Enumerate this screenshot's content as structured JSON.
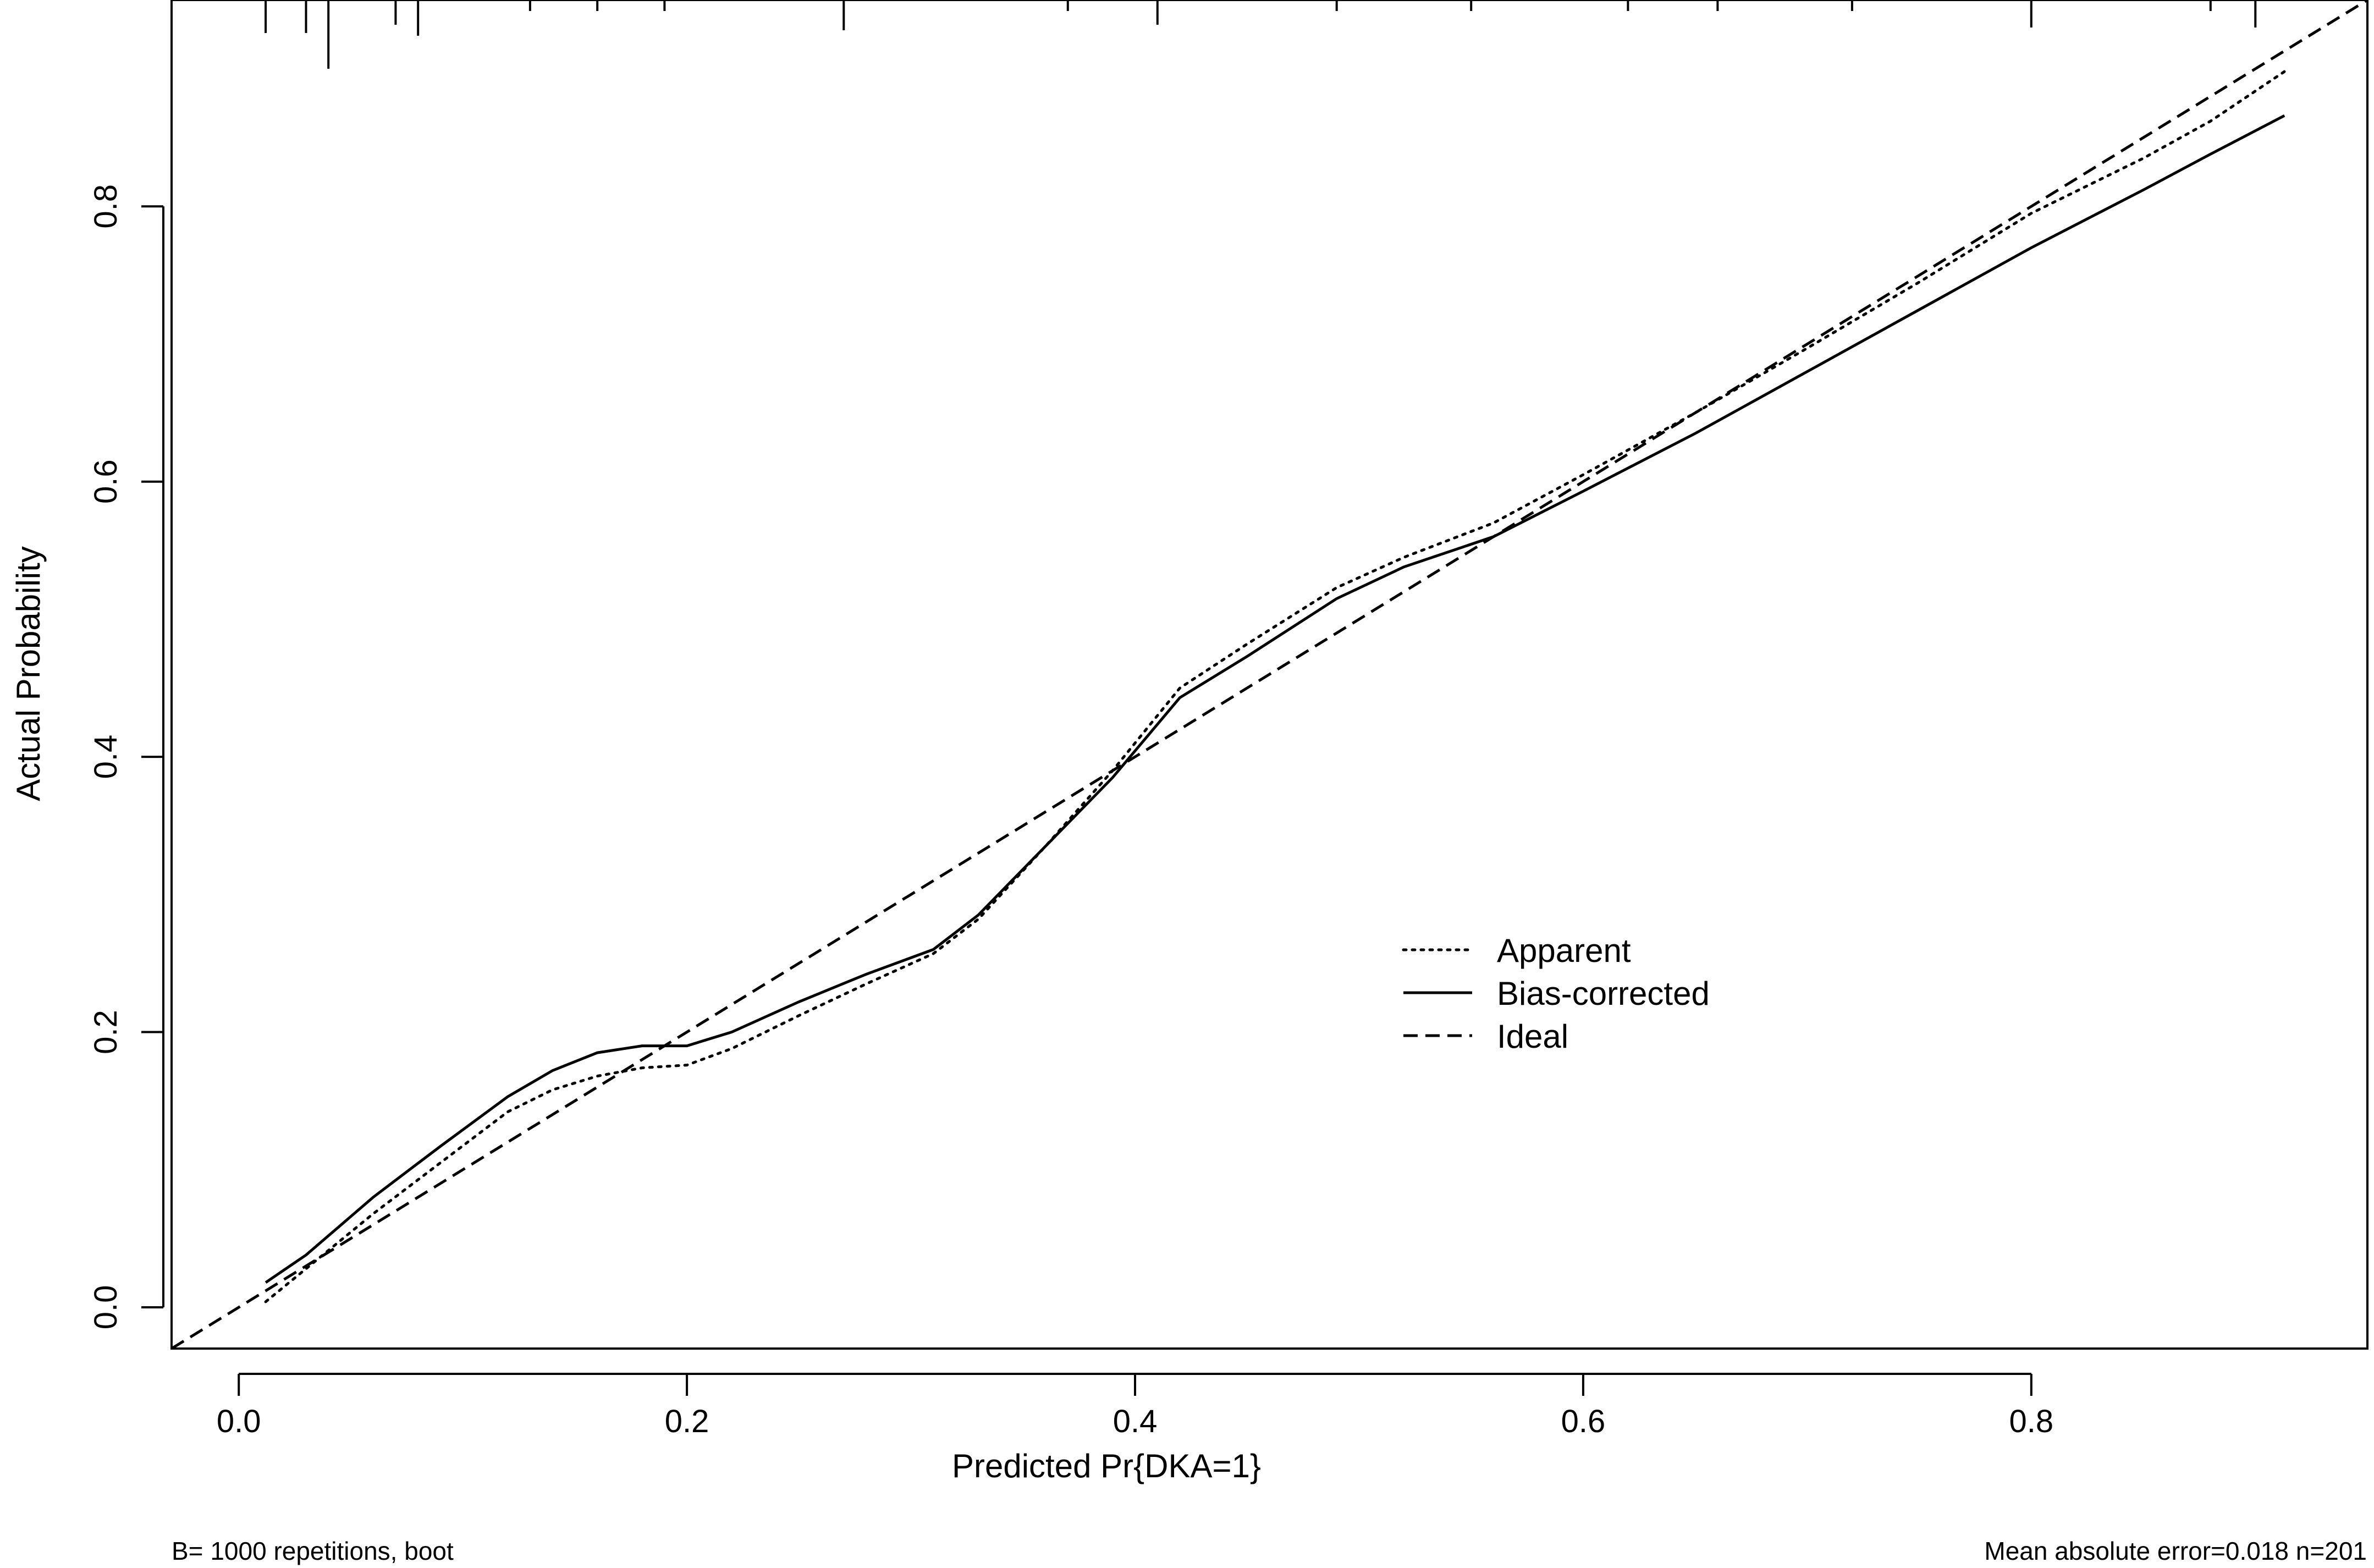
{
  "chart_data": {
    "type": "line",
    "title": "",
    "xlabel": "Predicted Pr{DKA=1}",
    "ylabel": "Actual Probability",
    "xlim": [
      -0.03,
      0.95
    ],
    "ylim": [
      -0.03,
      0.95
    ],
    "x_ticks": [
      "0.0",
      "0.2",
      "0.4",
      "0.6",
      "0.8"
    ],
    "y_ticks": [
      "0.0",
      "0.2",
      "0.4",
      "0.6",
      "0.8"
    ],
    "grid": false,
    "legend_position": "center-right",
    "series": [
      {
        "name": "Apparent",
        "line_style": "dotted",
        "points": [
          [
            0.012,
            0.004
          ],
          [
            0.03,
            0.028
          ],
          [
            0.06,
            0.068
          ],
          [
            0.09,
            0.105
          ],
          [
            0.12,
            0.142
          ],
          [
            0.14,
            0.158
          ],
          [
            0.16,
            0.168
          ],
          [
            0.18,
            0.174
          ],
          [
            0.2,
            0.176
          ],
          [
            0.22,
            0.188
          ],
          [
            0.25,
            0.212
          ],
          [
            0.28,
            0.235
          ],
          [
            0.31,
            0.257
          ],
          [
            0.33,
            0.282
          ],
          [
            0.36,
            0.335
          ],
          [
            0.39,
            0.39
          ],
          [
            0.42,
            0.45
          ],
          [
            0.45,
            0.482
          ],
          [
            0.49,
            0.523
          ],
          [
            0.52,
            0.545
          ],
          [
            0.56,
            0.57
          ],
          [
            0.6,
            0.605
          ],
          [
            0.65,
            0.65
          ],
          [
            0.7,
            0.697
          ],
          [
            0.75,
            0.745
          ],
          [
            0.8,
            0.795
          ],
          [
            0.85,
            0.835
          ],
          [
            0.88,
            0.862
          ],
          [
            0.913,
            0.898
          ]
        ]
      },
      {
        "name": "Bias-corrected",
        "line_style": "solid",
        "points": [
          [
            0.012,
            0.018
          ],
          [
            0.03,
            0.038
          ],
          [
            0.06,
            0.08
          ],
          [
            0.09,
            0.117
          ],
          [
            0.12,
            0.153
          ],
          [
            0.14,
            0.172
          ],
          [
            0.16,
            0.185
          ],
          [
            0.18,
            0.19
          ],
          [
            0.2,
            0.19
          ],
          [
            0.22,
            0.2
          ],
          [
            0.25,
            0.222
          ],
          [
            0.28,
            0.242
          ],
          [
            0.31,
            0.26
          ],
          [
            0.33,
            0.285
          ],
          [
            0.36,
            0.335
          ],
          [
            0.39,
            0.385
          ],
          [
            0.42,
            0.443
          ],
          [
            0.45,
            0.473
          ],
          [
            0.49,
            0.515
          ],
          [
            0.52,
            0.538
          ],
          [
            0.56,
            0.56
          ],
          [
            0.6,
            0.593
          ],
          [
            0.65,
            0.635
          ],
          [
            0.7,
            0.68
          ],
          [
            0.75,
            0.725
          ],
          [
            0.8,
            0.77
          ],
          [
            0.85,
            0.812
          ],
          [
            0.88,
            0.838
          ],
          [
            0.913,
            0.866
          ]
        ]
      },
      {
        "name": "Ideal",
        "line_style": "dashed",
        "points": [
          [
            -0.03,
            -0.03
          ],
          [
            0.95,
            0.95
          ]
        ]
      }
    ],
    "rug_x": [
      0.012,
      0.03,
      0.04,
      0.07,
      0.08,
      0.13,
      0.16,
      0.19,
      0.27,
      0.37,
      0.41,
      0.49,
      0.55,
      0.62,
      0.66,
      0.72,
      0.8,
      0.88,
      0.9
    ],
    "annotations": {
      "left": "B= 1000 repetitions, boot",
      "right": "Mean absolute error=0.018 n=201"
    }
  }
}
